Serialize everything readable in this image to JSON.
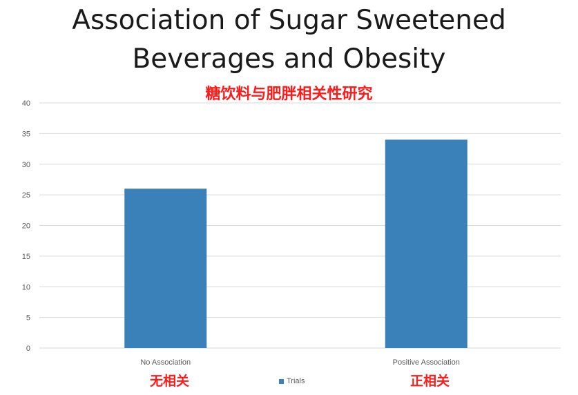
{
  "title_line1": "Association of Sugar Sweetened",
  "title_line2": "Beverages and Obesity",
  "subtitle_cn": "糖饮料与肥胖相关性研究",
  "category_labels_cn": [
    "无相关",
    "正相关"
  ],
  "colors": {
    "bar": "#3a81ba",
    "subtitle": "#ff1a1a",
    "grid": "#d9d9d9"
  },
  "chart_data": {
    "type": "bar",
    "categories": [
      "No Association",
      "Positive Association"
    ],
    "series": [
      {
        "name": "Trials",
        "values": [
          26,
          34
        ]
      }
    ],
    "ylim": [
      0,
      40
    ],
    "yticks": [
      0,
      5,
      10,
      15,
      20,
      25,
      30,
      35,
      40
    ],
    "xlabel": "",
    "ylabel": "",
    "grid": true,
    "legend": "bottom"
  }
}
